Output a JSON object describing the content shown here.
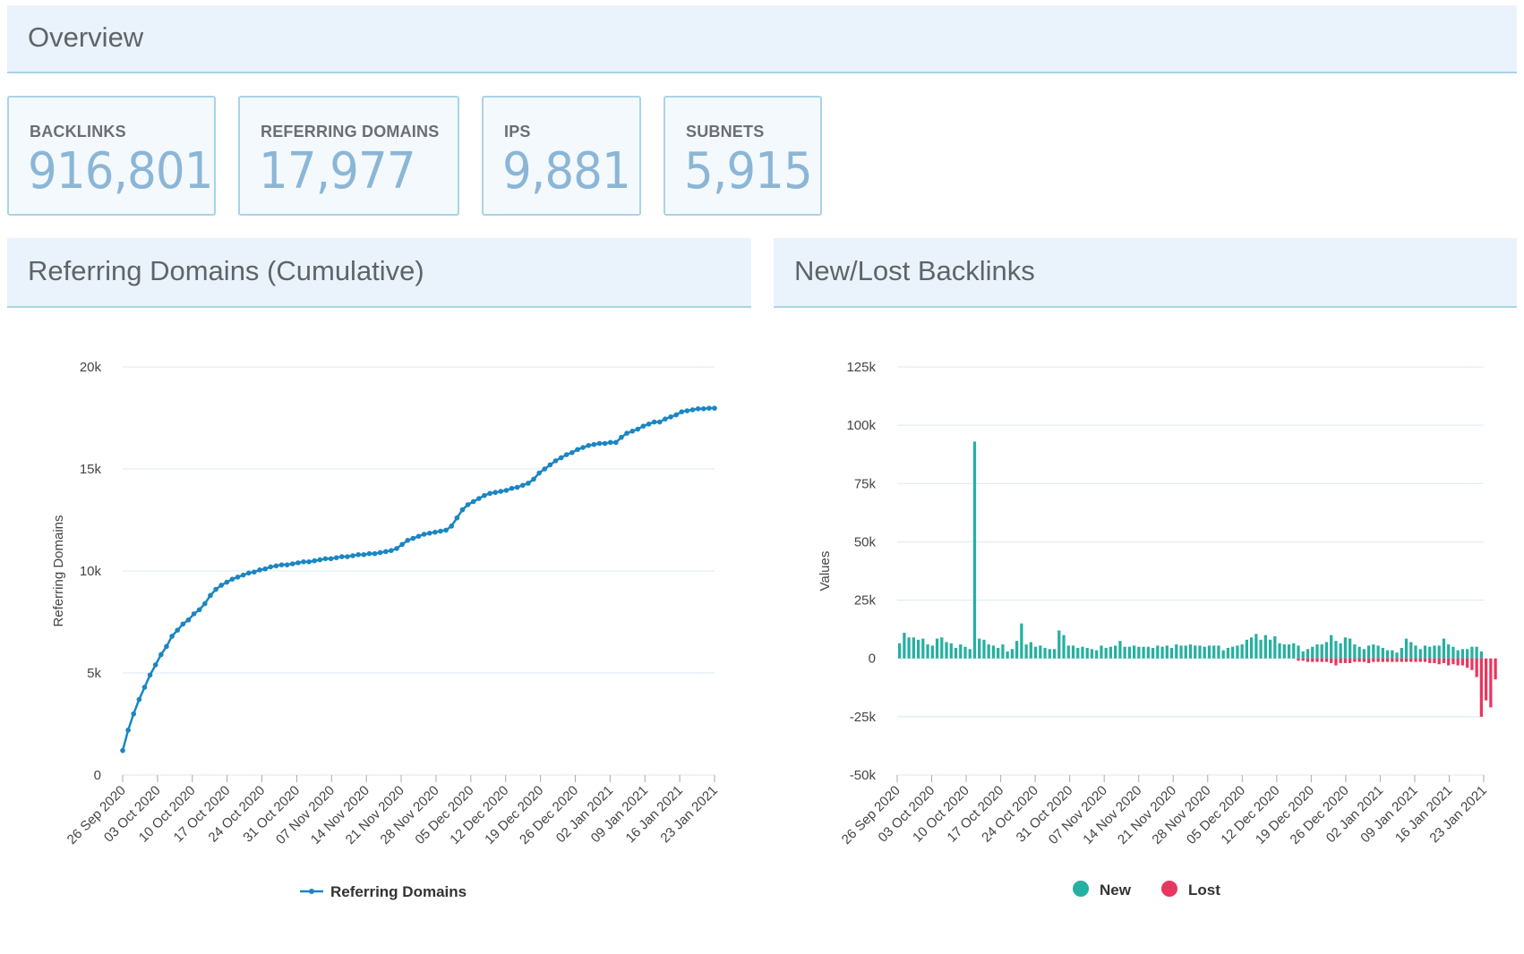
{
  "overview": {
    "title": "Overview"
  },
  "stats": [
    {
      "label": "BACKLINKS",
      "value": "916,801"
    },
    {
      "label": "REFERRING DOMAINS",
      "value": "17,977"
    },
    {
      "label": "IPS",
      "value": "9,881"
    },
    {
      "label": "SUBNETS",
      "value": "5,915"
    }
  ],
  "colors": {
    "line": "#1a86c2",
    "new": "#26b0a0",
    "lost": "#e8365f",
    "grid": "#d9e8f0"
  },
  "chart_data": [
    {
      "type": "line",
      "title": "Referring Domains (Cumulative)",
      "ylabel": "Referring Domains",
      "ylim": [
        0,
        20000
      ],
      "yticks": [
        "0",
        "5k",
        "10k",
        "15k",
        "20k"
      ],
      "xlabels": [
        "26 Sep 2020",
        "03 Oct 2020",
        "10 Oct 2020",
        "17 Oct 2020",
        "24 Oct 2020",
        "31 Oct 2020",
        "07 Nov 2020",
        "14 Nov 2020",
        "21 Nov 2020",
        "28 Nov 2020",
        "05 Dec 2020",
        "12 Dec 2020",
        "19 Dec 2020",
        "26 Dec 2020",
        "02 Jan 2021",
        "09 Jan 2021",
        "16 Jan 2021",
        "23 Jan 2021"
      ],
      "series": [
        {
          "name": "Referring Domains",
          "values": [
            1200,
            2200,
            3000,
            3700,
            4300,
            4900,
            5400,
            5900,
            6300,
            6800,
            7100,
            7400,
            7600,
            7900,
            8100,
            8400,
            8800,
            9100,
            9300,
            9450,
            9600,
            9700,
            9800,
            9900,
            9950,
            10050,
            10100,
            10200,
            10250,
            10300,
            10300,
            10350,
            10400,
            10450,
            10450,
            10500,
            10550,
            10600,
            10600,
            10650,
            10700,
            10700,
            10750,
            10800,
            10800,
            10850,
            10850,
            10900,
            10950,
            11000,
            11100,
            11300,
            11500,
            11600,
            11700,
            11800,
            11850,
            11900,
            11950,
            12000,
            12200,
            12600,
            13000,
            13250,
            13400,
            13550,
            13700,
            13800,
            13850,
            13900,
            13950,
            14050,
            14100,
            14200,
            14300,
            14500,
            14800,
            15000,
            15200,
            15400,
            15550,
            15700,
            15800,
            15950,
            16050,
            16150,
            16200,
            16250,
            16250,
            16300,
            16300,
            16550,
            16750,
            16850,
            16950,
            17100,
            17200,
            17300,
            17300,
            17450,
            17550,
            17650,
            17800,
            17850,
            17900,
            17950,
            17950,
            17977,
            17977
          ]
        }
      ]
    },
    {
      "type": "bar",
      "title": "New/Lost Backlinks",
      "ylabel": "Values",
      "ylim": [
        -50000,
        125000
      ],
      "yticks": [
        "-50k",
        "-25k",
        "0",
        "25k",
        "50k",
        "75k",
        "100k",
        "125k"
      ],
      "xlabels": [
        "26 Sep 2020",
        "03 Oct 2020",
        "10 Oct 2020",
        "17 Oct 2020",
        "24 Oct 2020",
        "31 Oct 2020",
        "07 Nov 2020",
        "14 Nov 2020",
        "21 Nov 2020",
        "28 Nov 2020",
        "05 Dec 2020",
        "12 Dec 2020",
        "19 Dec 2020",
        "26 Dec 2020",
        "02 Jan 2021",
        "09 Jan 2021",
        "16 Jan 2021",
        "23 Jan 2021"
      ],
      "series": [
        {
          "name": "New",
          "values": [
            6500,
            11000,
            9000,
            9000,
            8000,
            8500,
            6000,
            5500,
            8500,
            9000,
            7000,
            6500,
            4500,
            6000,
            5000,
            4000,
            93000,
            8500,
            8000,
            6000,
            5500,
            4500,
            6000,
            3000,
            4000,
            7500,
            15000,
            6000,
            7000,
            5000,
            5500,
            4500,
            4000,
            4000,
            12000,
            10000,
            5500,
            5500,
            4500,
            5000,
            4500,
            4000,
            3500,
            5500,
            4500,
            5000,
            5500,
            7500,
            5000,
            5000,
            5500,
            5000,
            5000,
            5000,
            4500,
            5500,
            5000,
            5500,
            4500,
            6000,
            5500,
            5500,
            6000,
            5500,
            5500,
            5000,
            5500,
            5500,
            5500,
            3500,
            4500,
            5000,
            5500,
            6000,
            8000,
            9000,
            10500,
            8000,
            10000,
            8000,
            9500,
            6500,
            6000,
            6000,
            6500,
            5500,
            3000,
            4000,
            5000,
            6000,
            6000,
            7000,
            10000,
            7500,
            6500,
            9000,
            8500,
            6000,
            5000,
            4000,
            5500,
            6000,
            5500,
            4500,
            3500,
            3500,
            2500,
            4500,
            8500,
            7000,
            5500,
            4000,
            5500,
            5000,
            5500,
            5500,
            8500,
            6000,
            5000,
            3500,
            4000,
            4000,
            5000,
            5000,
            3000
          ],
          "lost_values": [
            0,
            0,
            0,
            0,
            0,
            0,
            0,
            0,
            0,
            0,
            0,
            0,
            0,
            0,
            0,
            0,
            0,
            0,
            0,
            0,
            0,
            0,
            0,
            0,
            0,
            0,
            0,
            0,
            0,
            0,
            0,
            0,
            0,
            0,
            0,
            0,
            0,
            0,
            0,
            0,
            0,
            0,
            0,
            0,
            0,
            0,
            0,
            0,
            0,
            0,
            0,
            0,
            0,
            0,
            0,
            0,
            0,
            0,
            0,
            0,
            0,
            0,
            0,
            0,
            0,
            0,
            0,
            0,
            0,
            0,
            0,
            0,
            0,
            0,
            0,
            0,
            0,
            0,
            0,
            0,
            0,
            0,
            0,
            0,
            0,
            -1000,
            -1000,
            -1500,
            -1500,
            -1500,
            -1500,
            -1500,
            -2000,
            -3000,
            -2000,
            -2000,
            -2000,
            -1500,
            -1500,
            -1500,
            -2000,
            -1500,
            -1500,
            -1500,
            -1500,
            -1500,
            -1500,
            -1500,
            -1500,
            -1500,
            -1500,
            -1500,
            -1500,
            -2000,
            -2000,
            -2500,
            -2000,
            -3000,
            -2500,
            -3000,
            -3000,
            -4000,
            -5000,
            -8000,
            -25000,
            -18000,
            -21000,
            -9000
          ]
        }
      ],
      "legend": [
        {
          "name": "New"
        },
        {
          "name": "Lost"
        }
      ]
    }
  ]
}
